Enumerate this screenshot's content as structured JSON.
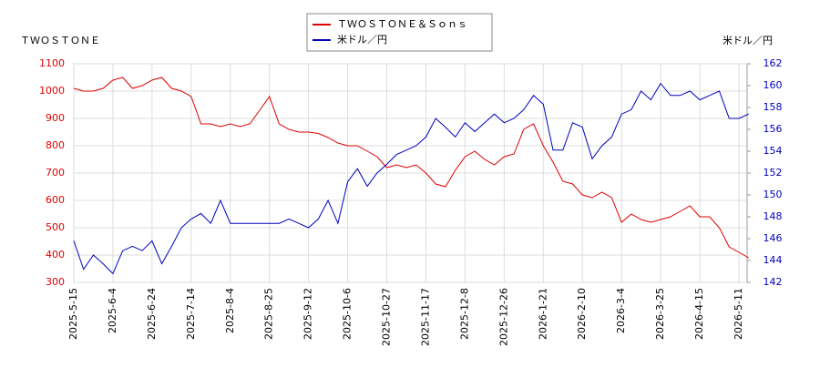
{
  "chart_data": {
    "type": "line",
    "ylabel": "ＴＷＯＳＴＯＮＥ",
    "y2label": "米ドル／円",
    "categories": [
      "2025-5-15",
      null,
      null,
      null,
      "2025-6-4",
      null,
      null,
      null,
      "2025-6-24",
      null,
      null,
      null,
      "2025-7-14",
      null,
      null,
      null,
      "2025-8-4",
      null,
      null,
      null,
      "2025-8-25",
      null,
      null,
      null,
      "2025-9-12",
      null,
      null,
      null,
      "2025-10-6",
      null,
      null,
      null,
      "2025-10-27",
      null,
      null,
      null,
      "2025-11-17",
      null,
      null,
      null,
      "2025-12-8",
      null,
      null,
      null,
      "2025-12-26",
      null,
      null,
      null,
      "2026-1-21",
      null,
      null,
      null,
      "2026-2-10",
      null,
      null,
      null,
      "2026-3-4",
      null,
      null,
      null,
      "2026-3-25",
      null,
      null,
      null,
      "2026-4-15",
      null,
      null,
      null,
      "2026-5-11",
      null
    ],
    "series": [
      {
        "name": "ＴＷＯＳＴＯＮＥ＆Ｓｏｎｓ",
        "color": "#dd0000",
        "values": [
          1010,
          1000,
          1000,
          1010,
          1040,
          1050,
          1010,
          1020,
          1040,
          1050,
          1010,
          1000,
          980,
          880,
          880,
          870,
          880,
          870,
          880,
          930,
          980,
          880,
          860,
          850,
          850,
          845,
          830,
          810,
          800,
          800,
          780,
          760,
          720,
          730,
          720,
          730,
          700,
          660,
          650,
          710,
          760,
          780,
          750,
          730,
          760,
          770,
          860,
          880,
          800,
          740,
          670,
          660,
          620,
          610,
          630,
          610,
          520,
          550,
          530,
          520,
          530,
          540,
          560,
          580,
          540,
          540,
          500,
          430,
          410,
          390
        ]
      },
      {
        "name": "米ドル／円",
        "color": "#0000bb",
        "axis": "y2",
        "values": [
          145.8,
          143.2,
          144.5,
          143.7,
          142.8,
          144.9,
          145.3,
          144.9,
          145.8,
          143.7,
          145.3,
          147,
          147.8,
          148.3,
          147.4,
          149.5,
          147.4,
          147.4,
          147.4,
          147.4,
          147.4,
          147.4,
          147.8,
          147.4,
          147,
          147.8,
          149.5,
          147.4,
          151.2,
          152.4,
          150.8,
          152,
          152.8,
          153.7,
          154.1,
          154.5,
          155.3,
          157,
          156.2,
          155.3,
          156.6,
          155.8,
          156.6,
          157.4,
          156.6,
          157,
          157.8,
          159.1,
          158.3,
          154.1,
          154.1,
          156.6,
          156.2,
          153.3,
          154.5,
          155.3,
          157.4,
          157.8,
          159.5,
          158.7,
          160.2,
          159.1,
          159.1,
          159.5,
          158.7,
          159.1,
          159.5,
          157,
          157,
          157.4
        ]
      }
    ],
    "ylim": [
      300,
      1100
    ],
    "yticks": [
      300,
      400,
      500,
      600,
      700,
      800,
      900,
      1000,
      1100
    ],
    "y2lim": [
      142,
      162
    ],
    "y2ticks": [
      142,
      144,
      146,
      148,
      150,
      152,
      154,
      156,
      158,
      160,
      162
    ],
    "grid": true
  }
}
